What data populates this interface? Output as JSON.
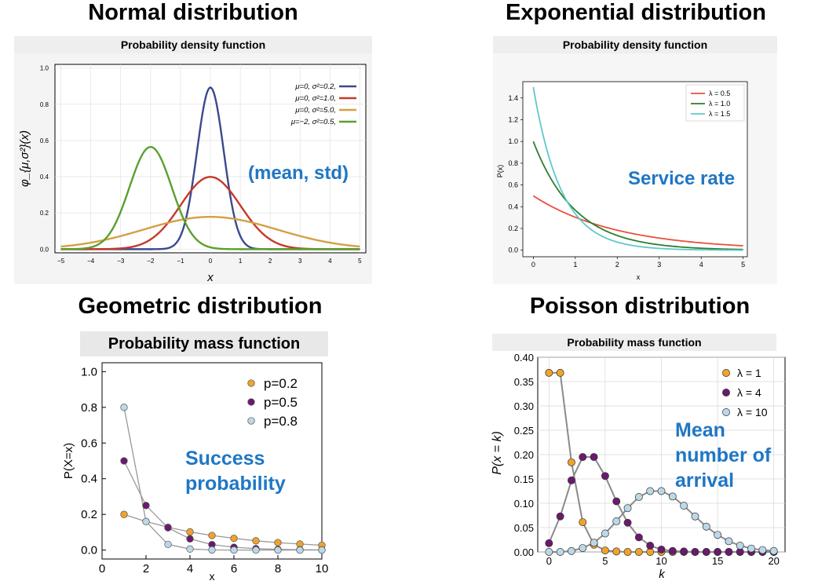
{
  "panels": {
    "normal": {
      "title": "Normal distribution",
      "header": "Probability density function",
      "annotation": "(mean, std)"
    },
    "exponential": {
      "title": "Exponential distribution",
      "header": "Probability density function",
      "annotation": "Service rate"
    },
    "geometric": {
      "title": "Geometric distribution",
      "header": "Probability mass function",
      "annotation_lines": [
        "Success",
        "probability"
      ]
    },
    "poisson": {
      "title": "Poisson distribution",
      "header": "Probability mass function",
      "annotation_lines": [
        "Mean",
        "number of",
        "arrival"
      ]
    }
  },
  "colors": {
    "normal_blue": "#3a4a8e",
    "normal_red": "#c4392b",
    "normal_gold": "#d4a043",
    "normal_green": "#5aa02c",
    "exp_red": "#e8513d",
    "exp_green": "#2e7d32",
    "exp_cyan": "#5fc9c9",
    "orange": "#f0a32a",
    "purple": "#6a1a6e",
    "lightblue": "#bcd8e8",
    "annotation": "#1f77c4"
  },
  "chart_data": [
    {
      "type": "line",
      "title": "Probability density function",
      "xlabel": "x",
      "ylabel": "φ_{μ,σ²}(x)",
      "xlim": [
        -5.2,
        5.2
      ],
      "ylim": [
        -0.02,
        1.02
      ],
      "xticks": [
        "−5",
        "−4",
        "−3",
        "−2",
        "−1",
        "0",
        "1",
        "2",
        "3",
        "4",
        "5"
      ],
      "yticks": [
        "0.0",
        "0.2",
        "0.4",
        "0.6",
        "0.8",
        "1.0"
      ],
      "legend_position": "top-right",
      "series": [
        {
          "name": "μ=0,   σ²=0.2,",
          "mean": 0,
          "variance": 0.2
        },
        {
          "name": "μ=0,   σ²=1.0,",
          "mean": 0,
          "variance": 1.0
        },
        {
          "name": "μ=0,   σ²=5.0,",
          "mean": 0,
          "variance": 5.0
        },
        {
          "name": "μ=−2,  σ²=0.5,",
          "mean": -2,
          "variance": 0.5
        }
      ]
    },
    {
      "type": "line",
      "title": "Probability density function",
      "xlabel": "x",
      "ylabel": "P(x)",
      "xlim": [
        -0.25,
        5.1
      ],
      "ylim": [
        -0.06,
        1.55
      ],
      "xticks": [
        "0",
        "1",
        "2",
        "3",
        "4",
        "5"
      ],
      "yticks": [
        "0.0",
        "0.2",
        "0.4",
        "0.6",
        "0.8",
        "1.0",
        "1.2",
        "1.4"
      ],
      "legend_position": "top-right",
      "series": [
        {
          "name": "λ = 0.5",
          "lambda": 0.5
        },
        {
          "name": "λ = 1.0",
          "lambda": 1.0
        },
        {
          "name": "λ = 1.5",
          "lambda": 1.5
        }
      ]
    },
    {
      "type": "scatter",
      "title": "Probability mass function",
      "xlabel": "x",
      "ylabel": "P(X=x)",
      "xlim": [
        0,
        10
      ],
      "ylim": [
        -0.05,
        1.05
      ],
      "xticks": [
        "0",
        "2",
        "4",
        "6",
        "8",
        "10"
      ],
      "yticks": [
        "0.0",
        "0.2",
        "0.4",
        "0.6",
        "0.8",
        "1.0"
      ],
      "legend_position": "top-right",
      "x": [
        1,
        2,
        3,
        4,
        5,
        6,
        7,
        8,
        9,
        10
      ],
      "series": [
        {
          "name": "p=0.2",
          "values": [
            0.2,
            0.16,
            0.128,
            0.102,
            0.082,
            0.066,
            0.052,
            0.042,
            0.034,
            0.027
          ]
        },
        {
          "name": "p=0.5",
          "values": [
            0.5,
            0.25,
            0.125,
            0.063,
            0.031,
            0.016,
            0.008,
            0.004,
            0.002,
            0.001
          ]
        },
        {
          "name": "p=0.8",
          "values": [
            0.8,
            0.16,
            0.032,
            0.006,
            0.001,
            0.0,
            0.0,
            0.0,
            0.0,
            0.0
          ]
        }
      ]
    },
    {
      "type": "scatter",
      "title": "Probability mass function",
      "xlabel": "k",
      "ylabel": "P(x = k)",
      "xlim": [
        -1,
        21
      ],
      "ylim": [
        0,
        0.4
      ],
      "xticks": [
        "0",
        "5",
        "10",
        "15",
        "20"
      ],
      "yticks": [
        "0.00",
        "0.05",
        "0.10",
        "0.15",
        "0.20",
        "0.25",
        "0.30",
        "0.35",
        "0.40"
      ],
      "legend_position": "top-right",
      "x": [
        0,
        1,
        2,
        3,
        4,
        5,
        6,
        7,
        8,
        9,
        10,
        11,
        12,
        13,
        14,
        15,
        16,
        17,
        18,
        19,
        20
      ],
      "series": [
        {
          "name": "λ = 1",
          "values": [
            0.368,
            0.368,
            0.184,
            0.061,
            0.015,
            0.003,
            0.001,
            0.0,
            0.0,
            0.0,
            0.0,
            0.0,
            0.0,
            0.0,
            0.0,
            0.0,
            0.0,
            0.0,
            0.0,
            0.0,
            0.0
          ]
        },
        {
          "name": "λ = 4",
          "values": [
            0.018,
            0.073,
            0.147,
            0.195,
            0.195,
            0.156,
            0.104,
            0.06,
            0.03,
            0.013,
            0.005,
            0.002,
            0.001,
            0.0,
            0.0,
            0.0,
            0.0,
            0.0,
            0.0,
            0.0,
            0.0
          ]
        },
        {
          "name": "λ = 10",
          "values": [
            0.0,
            0.0,
            0.002,
            0.008,
            0.019,
            0.038,
            0.063,
            0.09,
            0.113,
            0.125,
            0.125,
            0.114,
            0.095,
            0.073,
            0.052,
            0.035,
            0.022,
            0.013,
            0.007,
            0.004,
            0.002
          ]
        }
      ]
    }
  ]
}
